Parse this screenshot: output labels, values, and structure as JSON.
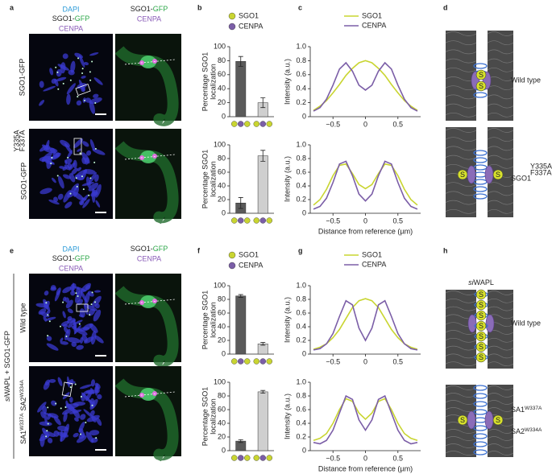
{
  "panel_labels": [
    "a",
    "b",
    "c",
    "d",
    "e",
    "f",
    "g",
    "h"
  ],
  "channels": {
    "a": {
      "dapi": "DAPI",
      "sgo1": "SGO1-",
      "gfp": "GFP",
      "cenpa": "CENPA",
      "zoom_sgo1": "SGO1-",
      "zoom_gfp": "GFP",
      "zoom_cenpa": "CENPA"
    },
    "e": {
      "dapi": "DAPI",
      "sgo1": "SGO1-",
      "gfp": "GFP",
      "cenpa": "CENPA",
      "zoom_sgo1": "SGO1-",
      "zoom_gfp": "GFP",
      "zoom_cenpa": "CENPA"
    }
  },
  "row_labels": {
    "a_row1": "SGO1-GFP",
    "a_row2": "SGO1-GFP",
    "a_row2_sup": "Y335A",
    "a_row2_sub": "F337A",
    "e_group_si": "si",
    "e_group_rest": "WAPL + SGO1-GFP",
    "e_row1": "Wild type",
    "e_row2_sa1": "SA1",
    "e_row2_sa1_mut": "W337A",
    "e_row2_sa2": "SA2",
    "e_row2_sa2_mut": "W334A"
  },
  "diagrams": {
    "symbol": "S",
    "d_row1": "Wild type",
    "d_row2": "SGO1",
    "d_row2_sup": "Y335A",
    "d_row2_sub": "F337A",
    "h_title_si": "si",
    "h_title_rest": "WAPL",
    "h_row1": "Wild type",
    "h_row2_sa1": "SA1",
    "h_row2_sa1_mut": "W337A",
    "h_row2_sa2": "SA2",
    "h_row2_sa2_mut": "W334A"
  },
  "chart_data": [
    {
      "type": "bar",
      "ylabel": [
        "Percentage SGO1",
        "localization"
      ],
      "categories": [
        null,
        null
      ],
      "values": [
        79,
        20
      ],
      "errors": [
        7,
        7
      ],
      "bar_colors": [
        "#5a5a5a",
        "#cfcfcf"
      ],
      "category_icons": [
        [
          "#c9d531",
          "#7b5ea7",
          "#c9d531"
        ],
        [
          "#c9d531",
          "#7b5ea7",
          "#c9d531"
        ]
      ],
      "legend": [
        {
          "name": "SGO1",
          "color": "#c9d531"
        },
        {
          "name": "CENPA",
          "color": "#7b5ea7"
        }
      ],
      "ylim": [
        0,
        100
      ],
      "yticks": [
        0,
        20,
        40,
        60,
        80,
        100
      ]
    },
    {
      "type": "bar",
      "ylabel": [
        "Percentage SGO1",
        "localization"
      ],
      "categories": [
        null,
        null
      ],
      "values": [
        15,
        84
      ],
      "errors": [
        8,
        8
      ],
      "bar_colors": [
        "#5a5a5a",
        "#cfcfcf"
      ],
      "category_icons": [
        [
          "#c9d531",
          "#7b5ea7",
          "#c9d531"
        ],
        [
          "#c9d531",
          "#7b5ea7",
          "#c9d531"
        ]
      ],
      "ylim": [
        0,
        100
      ],
      "yticks": [
        0,
        20,
        40,
        60,
        80,
        100
      ]
    },
    {
      "type": "line",
      "ylabel": "Intensity (a.u.)",
      "x": [
        -0.8,
        -0.7,
        -0.6,
        -0.5,
        -0.4,
        -0.3,
        -0.2,
        -0.1,
        0,
        0.1,
        0.2,
        0.3,
        0.4,
        0.5,
        0.6,
        0.7,
        0.8
      ],
      "series": [
        {
          "name": "SGO1",
          "color": "#c9d531",
          "values": [
            0.09,
            0.15,
            0.23,
            0.34,
            0.46,
            0.59,
            0.69,
            0.77,
            0.8,
            0.77,
            0.69,
            0.59,
            0.46,
            0.34,
            0.23,
            0.15,
            0.09
          ]
        },
        {
          "name": "CENPA",
          "color": "#7b5ea7",
          "values": [
            0.08,
            0.13,
            0.25,
            0.45,
            0.68,
            0.77,
            0.65,
            0.45,
            0.38,
            0.45,
            0.65,
            0.77,
            0.68,
            0.45,
            0.25,
            0.13,
            0.08
          ]
        }
      ],
      "legend": true,
      "xlim": [
        -0.85,
        0.85
      ],
      "xticks": [
        {
          "value": -0.5,
          "label": "−0.5"
        },
        0,
        0.5
      ],
      "ylim": [
        0,
        1
      ],
      "yticks": [
        0,
        0.2,
        0.4,
        0.6,
        0.8,
        {
          "value": 1,
          "label": "1.0"
        }
      ]
    },
    {
      "type": "line",
      "ylabel": "Intensity (a.u.)",
      "xlabel": "Distance from reference (µm)",
      "x": [
        -0.8,
        -0.7,
        -0.6,
        -0.5,
        -0.4,
        -0.3,
        -0.2,
        -0.1,
        0,
        0.1,
        0.2,
        0.3,
        0.4,
        0.5,
        0.6,
        0.7,
        0.8
      ],
      "series": [
        {
          "color": "#c9d531",
          "values": [
            0.12,
            0.2,
            0.35,
            0.55,
            0.7,
            0.72,
            0.58,
            0.42,
            0.36,
            0.42,
            0.58,
            0.72,
            0.7,
            0.55,
            0.35,
            0.2,
            0.12
          ]
        },
        {
          "color": "#7b5ea7",
          "values": [
            0.06,
            0.1,
            0.22,
            0.45,
            0.72,
            0.76,
            0.55,
            0.28,
            0.18,
            0.28,
            0.55,
            0.76,
            0.72,
            0.45,
            0.22,
            0.1,
            0.06
          ]
        }
      ],
      "xlim": [
        -0.85,
        0.85
      ],
      "xticks": [
        {
          "value": -0.5,
          "label": "−0.5"
        },
        0,
        0.5
      ],
      "ylim": [
        0,
        1
      ],
      "yticks": [
        0,
        0.2,
        0.4,
        0.6,
        0.8,
        {
          "value": 1,
          "label": "1.0"
        }
      ]
    },
    {
      "type": "bar",
      "ylabel": [
        "Percentage SGO1",
        "localization"
      ],
      "categories": [
        null,
        null
      ],
      "values": [
        85,
        15
      ],
      "errors": [
        2,
        2
      ],
      "bar_colors": [
        "#5a5a5a",
        "#cfcfcf"
      ],
      "category_icons": [
        [
          "#c9d531",
          "#7b5ea7",
          "#c9d531"
        ],
        [
          "#c9d531",
          "#7b5ea7",
          "#c9d531"
        ]
      ],
      "legend": [
        {
          "name": "SGO1",
          "color": "#c9d531"
        },
        {
          "name": "CENPA",
          "color": "#7b5ea7"
        }
      ],
      "ylim": [
        0,
        100
      ],
      "yticks": [
        0,
        20,
        40,
        60,
        80,
        100
      ]
    },
    {
      "type": "bar",
      "ylabel": [
        "Percentage SGO1",
        "localization"
      ],
      "categories": [
        null,
        null
      ],
      "values": [
        14,
        86
      ],
      "errors": [
        2,
        2
      ],
      "bar_colors": [
        "#5a5a5a",
        "#cfcfcf"
      ],
      "category_icons": [
        [
          "#c9d531",
          "#7b5ea7",
          "#c9d531"
        ],
        [
          "#c9d531",
          "#7b5ea7",
          "#c9d531"
        ]
      ],
      "ylim": [
        0,
        100
      ],
      "yticks": [
        0,
        20,
        40,
        60,
        80,
        100
      ]
    },
    {
      "type": "line",
      "ylabel": "Intensity (a.u.)",
      "x": [
        -0.8,
        -0.7,
        -0.6,
        -0.5,
        -0.4,
        -0.3,
        -0.2,
        -0.1,
        0,
        0.1,
        0.2,
        0.3,
        0.4,
        0.5,
        0.6,
        0.7,
        0.8
      ],
      "series": [
        {
          "name": "SGO1",
          "color": "#c9d531",
          "values": [
            0.07,
            0.1,
            0.15,
            0.24,
            0.36,
            0.52,
            0.68,
            0.78,
            0.81,
            0.78,
            0.68,
            0.52,
            0.36,
            0.24,
            0.15,
            0.1,
            0.07
          ]
        },
        {
          "name": "CENPA",
          "color": "#7b5ea7",
          "values": [
            0.06,
            0.08,
            0.15,
            0.3,
            0.55,
            0.78,
            0.72,
            0.38,
            0.2,
            0.38,
            0.72,
            0.78,
            0.55,
            0.3,
            0.15,
            0.08,
            0.06
          ]
        }
      ],
      "legend": true,
      "xlim": [
        -0.85,
        0.85
      ],
      "xticks": [
        {
          "value": -0.5,
          "label": "−0.5"
        },
        0,
        0.5
      ],
      "ylim": [
        0,
        1
      ],
      "yticks": [
        0,
        0.2,
        0.4,
        0.6,
        0.8,
        {
          "value": 1,
          "label": "1.0"
        }
      ]
    },
    {
      "type": "line",
      "ylabel": "Intensity (a.u.)",
      "xlabel": "Distance from reference (µm)",
      "x": [
        -0.8,
        -0.7,
        -0.6,
        -0.5,
        -0.4,
        -0.3,
        -0.2,
        -0.1,
        0,
        0.1,
        0.2,
        0.3,
        0.4,
        0.5,
        0.6,
        0.7,
        0.8
      ],
      "series": [
        {
          "color": "#c9d531",
          "values": [
            0.15,
            0.18,
            0.25,
            0.4,
            0.6,
            0.76,
            0.72,
            0.55,
            0.46,
            0.55,
            0.72,
            0.76,
            0.6,
            0.4,
            0.25,
            0.18,
            0.15
          ]
        },
        {
          "color": "#7b5ea7",
          "values": [
            0.12,
            0.1,
            0.15,
            0.3,
            0.55,
            0.8,
            0.75,
            0.45,
            0.3,
            0.45,
            0.75,
            0.8,
            0.55,
            0.3,
            0.15,
            0.1,
            0.12
          ]
        }
      ],
      "xlim": [
        -0.85,
        0.85
      ],
      "xticks": [
        {
          "value": -0.5,
          "label": "−0.5"
        },
        0,
        0.5
      ],
      "ylim": [
        0,
        1
      ],
      "yticks": [
        0,
        0.2,
        0.4,
        0.6,
        0.8,
        {
          "value": 1,
          "label": "1.0"
        }
      ]
    }
  ]
}
